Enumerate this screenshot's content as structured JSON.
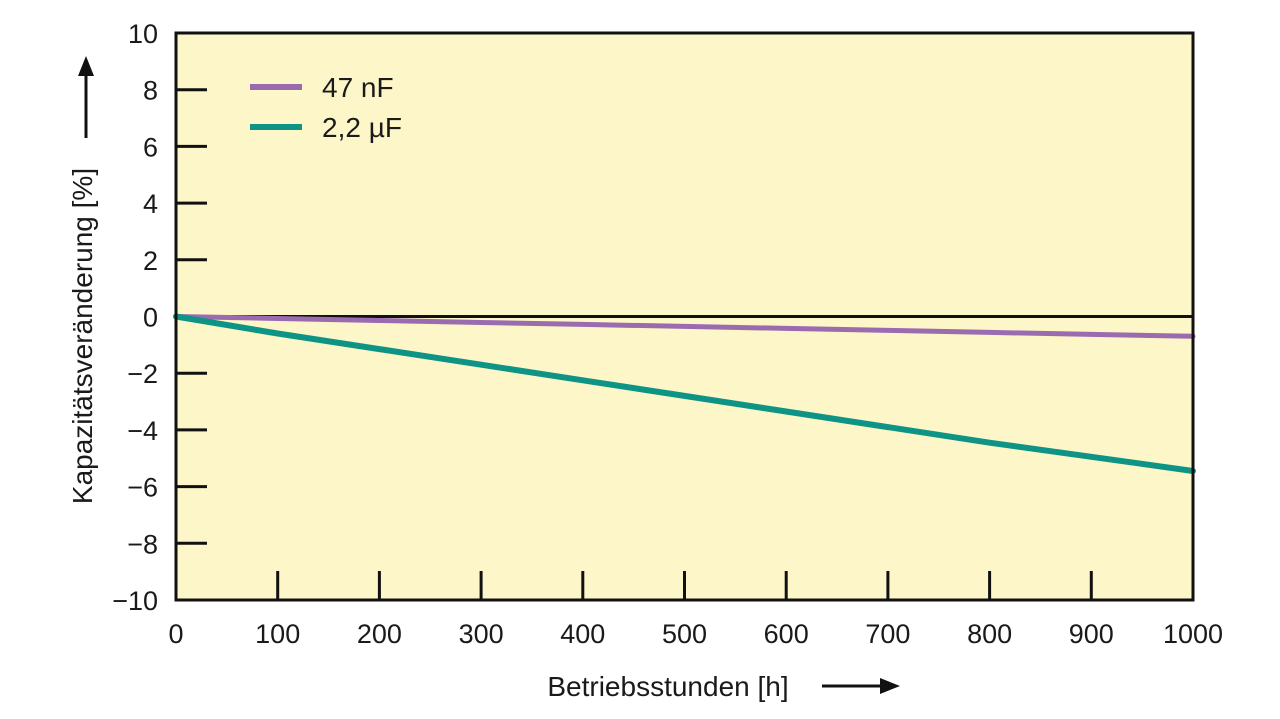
{
  "chart_data": {
    "type": "line",
    "title": "",
    "xlabel": "Betriebsstunden [h]",
    "ylabel": "Kapazitätsveränderung [%]",
    "xlim": [
      0,
      1000
    ],
    "ylim": [
      -10,
      10
    ],
    "x_ticks": [
      0,
      100,
      200,
      300,
      400,
      500,
      600,
      700,
      800,
      900,
      1000
    ],
    "y_ticks": [
      10,
      8,
      6,
      4,
      2,
      0,
      -2,
      -4,
      -6,
      -8,
      -10
    ],
    "y_tick_labels": [
      "10",
      "8",
      "6",
      "4",
      "2",
      "0",
      "−2",
      "−4",
      "−6",
      "−8",
      "−10"
    ],
    "x_tick_labels": [
      "0",
      "100",
      "200",
      "300",
      "400",
      "500",
      "600",
      "700",
      "800",
      "900",
      "1000"
    ],
    "grid": false,
    "legend_position": "top-left",
    "background_color": "#fcf6c8",
    "series": [
      {
        "name": "47 nF",
        "color": "#9b6bb0",
        "x": [
          0,
          100,
          200,
          300,
          400,
          500,
          600,
          700,
          800,
          900,
          1000
        ],
        "y": [
          0,
          -0.07,
          -0.14,
          -0.21,
          -0.28,
          -0.35,
          -0.42,
          -0.49,
          -0.56,
          -0.63,
          -0.7
        ]
      },
      {
        "name": "2,2 µF",
        "color": "#0e9484",
        "x": [
          0,
          100,
          200,
          300,
          400,
          500,
          600,
          700,
          800,
          900,
          1000
        ],
        "y": [
          0,
          -0.6,
          -1.15,
          -1.7,
          -2.25,
          -2.8,
          -3.35,
          -3.9,
          -4.45,
          -4.95,
          -5.45
        ]
      }
    ]
  }
}
